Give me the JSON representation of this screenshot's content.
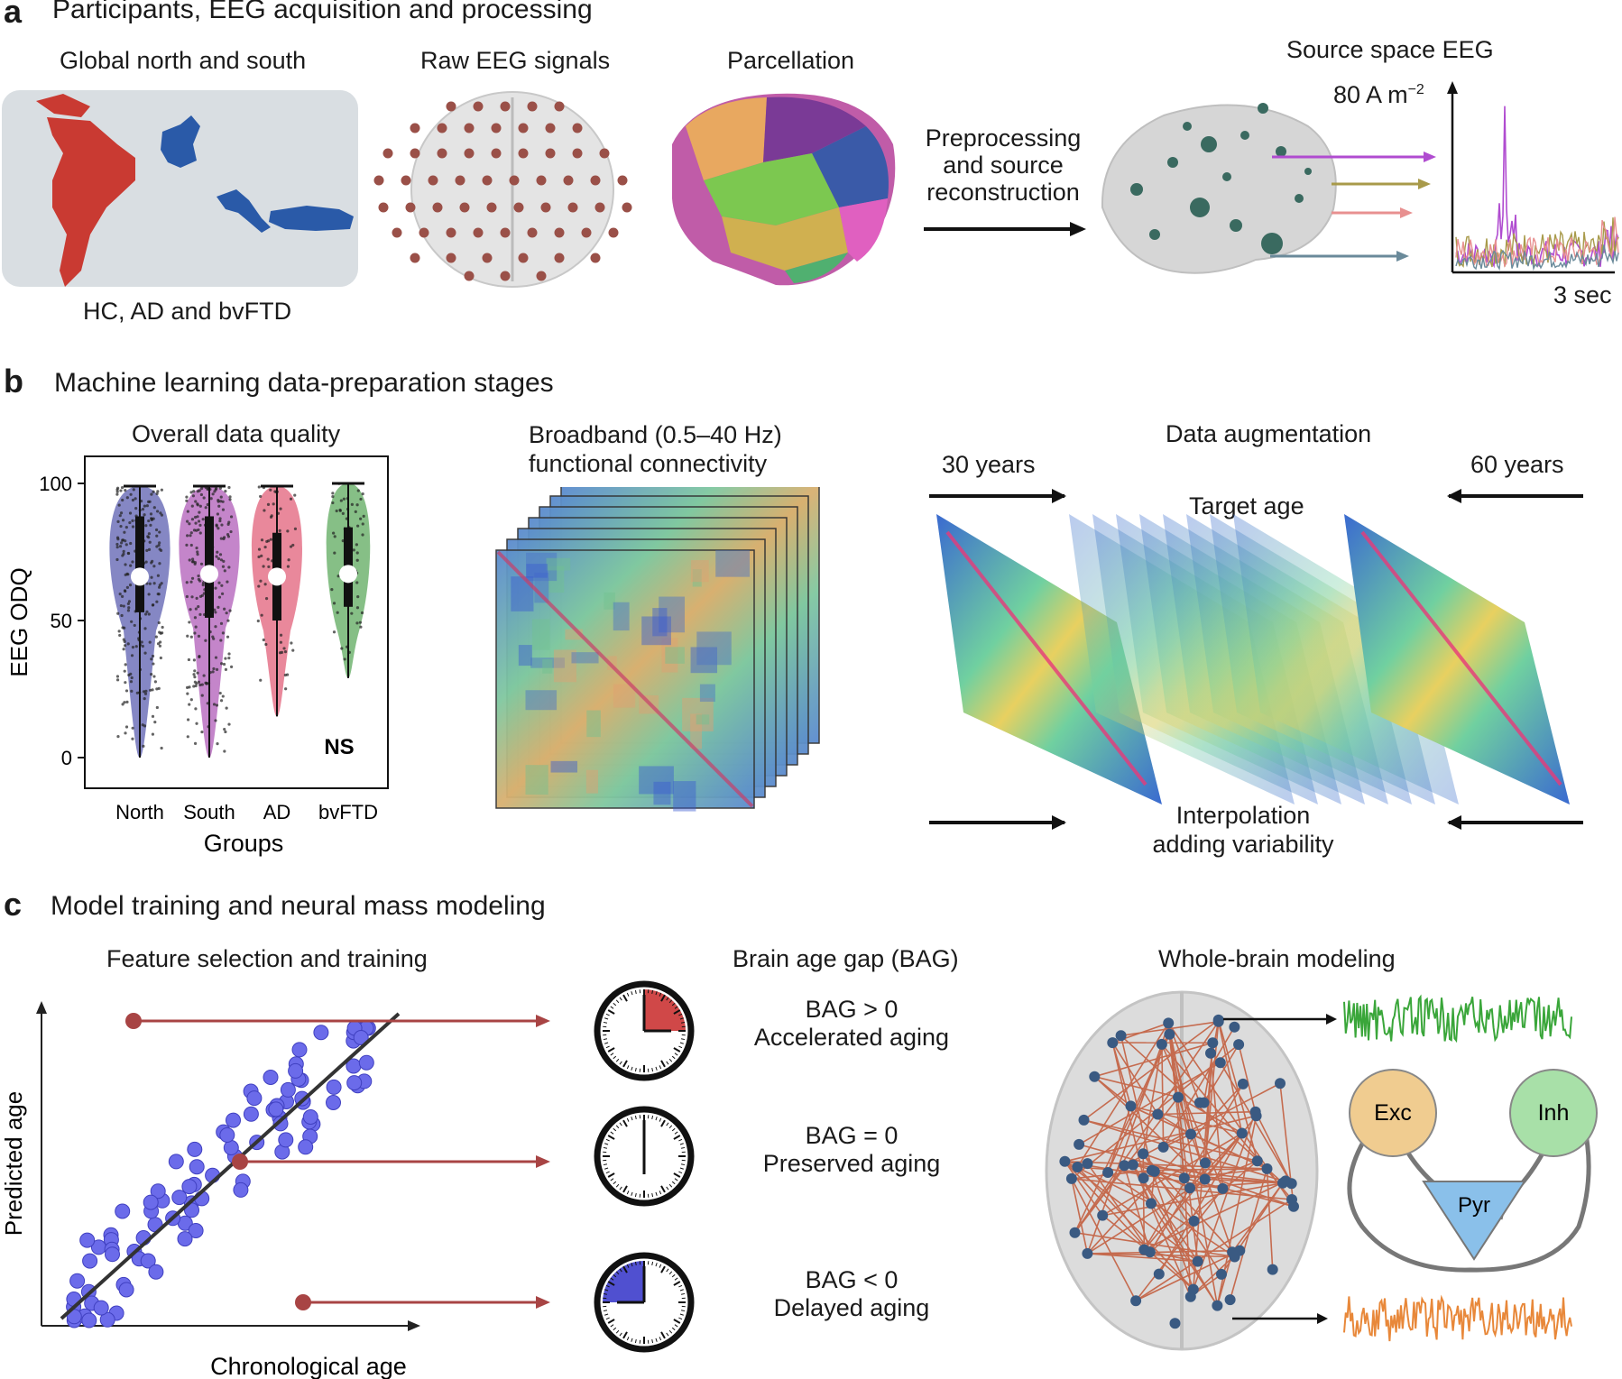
{
  "panel_a": {
    "letter": "a",
    "title": "Participants, EEG acquisition and processing",
    "map_title": "Global north and south",
    "map_caption": "HC, AD and bvFTD",
    "raw_title": "Raw EEG signals",
    "parcel_title": "Parcellation",
    "preproc_text": [
      "Preprocessing",
      "and source",
      "reconstruction"
    ],
    "source_title": "Source space EEG",
    "scale_y": "80 A m",
    "scale_y_exp": "−2",
    "scale_x": "3 sec"
  },
  "panel_b": {
    "letter": "b",
    "title": "Machine learning data-preparation stages",
    "quality_title": "Overall data quality",
    "fc_title": [
      "Broadband (0.5–40 Hz)",
      "functional connectivity"
    ],
    "aug_title": "Data augmentation",
    "aug_left": "30 years",
    "aug_right": "60 years",
    "aug_target": "Target age",
    "aug_bottom": [
      "Interpolation",
      "adding variability"
    ]
  },
  "panel_c": {
    "letter": "c",
    "title": "Model training and neural mass modeling",
    "scatter_title": "Feature selection and training",
    "scatter_ylabel": "Predicted age",
    "scatter_xlabel": "Chronological age",
    "bag_title": "Brain age gap (BAG)",
    "bag_items": [
      {
        "cond": "BAG > 0",
        "desc": "Accelerated aging"
      },
      {
        "cond": "BAG = 0",
        "desc": "Preserved aging"
      },
      {
        "cond": "BAG < 0",
        "desc": "Delayed aging"
      }
    ],
    "wb_title": "Whole-brain modeling",
    "nodes": {
      "exc": "Exc",
      "inh": "Inh",
      "pyr": "Pyr"
    }
  },
  "chart_data": {
    "type": "violin",
    "ylabel": "EEG ODQ",
    "xlabel": "Groups",
    "categories": [
      "North",
      "South",
      "AD",
      "bvFTD"
    ],
    "yticks": [
      0,
      50,
      100
    ],
    "ylim": [
      0,
      100
    ],
    "annotation": "NS",
    "series": [
      {
        "category": "North",
        "median": 66,
        "q1": 53,
        "q3": 88,
        "min": 0,
        "max": 99,
        "color": "#5c5fb0"
      },
      {
        "category": "South",
        "median": 67,
        "q1": 51,
        "q3": 88,
        "min": 0,
        "max": 99,
        "color": "#b05cb8"
      },
      {
        "category": "AD",
        "median": 66,
        "q1": 50,
        "q3": 82,
        "min": 15,
        "max": 99,
        "color": "#e2607a"
      },
      {
        "category": "bvFTD",
        "median": 67,
        "q1": 55,
        "q3": 84,
        "min": 29,
        "max": 100,
        "color": "#5eaa5e"
      }
    ]
  },
  "colors": {
    "dark_red": "#a84444",
    "scatter_blue": "#6b6bea",
    "electrode": "#9a5048",
    "brain_gray": "#d4d4d4"
  }
}
